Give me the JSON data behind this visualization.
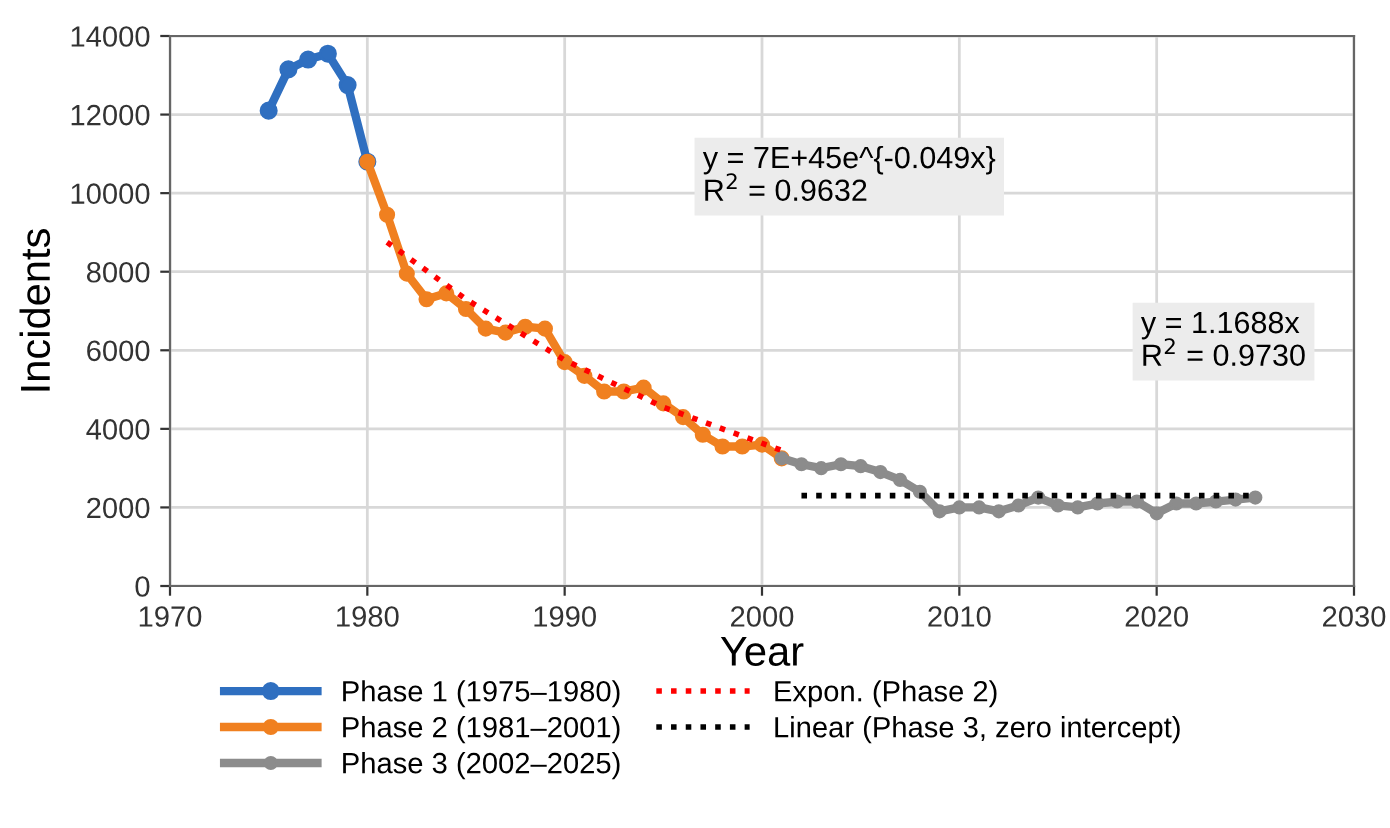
{
  "chart_data": {
    "type": "line",
    "xlabel": "Year",
    "ylabel": "Incidents",
    "xlim": [
      1970,
      2030
    ],
    "ylim": [
      0,
      14000
    ],
    "xticks": [
      1970,
      1980,
      1990,
      2000,
      2010,
      2020,
      2030
    ],
    "yticks": [
      0,
      2000,
      4000,
      6000,
      8000,
      10000,
      12000,
      14000
    ],
    "grid": true,
    "legend": "bottom",
    "marker": "circle",
    "line_style": "solid",
    "series": [
      {
        "name": "Phase 1 (1975–1980)",
        "color": "#2f6fc0",
        "x": [
          1975,
          1976,
          1977,
          1978,
          1979,
          1980
        ],
        "values": [
          12100,
          13150,
          13400,
          13550,
          12750,
          10800
        ]
      },
      {
        "name": "Phase 2 (1981–2001)",
        "color": "#f08020",
        "x": [
          1980,
          1981,
          1982,
          1983,
          1984,
          1985,
          1986,
          1987,
          1988,
          1989,
          1990,
          1991,
          1992,
          1993,
          1994,
          1995,
          1996,
          1997,
          1998,
          1999,
          2000,
          2001
        ],
        "values": [
          10800,
          9450,
          7950,
          7300,
          7450,
          7050,
          6550,
          6450,
          6600,
          6550,
          5700,
          5350,
          4950,
          4950,
          5050,
          4650,
          4300,
          3850,
          3550,
          3550,
          3600,
          3250
        ]
      },
      {
        "name": "Phase 3 (2002–2025)",
        "color": "#8c8c8c",
        "x": [
          2001,
          2002,
          2003,
          2004,
          2005,
          2006,
          2007,
          2008,
          2009,
          2010,
          2011,
          2012,
          2013,
          2014,
          2015,
          2016,
          2017,
          2018,
          2019,
          2020,
          2021,
          2022,
          2023,
          2024,
          2025
        ],
        "values": [
          3250,
          3100,
          3000,
          3100,
          3050,
          2900,
          2700,
          2400,
          1900,
          2000,
          2000,
          1900,
          2050,
          2250,
          2050,
          2000,
          2100,
          2150,
          2150,
          1850,
          2100,
          2100,
          2150,
          2200,
          2250
        ]
      },
      {
        "name": "Expon. (Phase 2)",
        "color": "#ff0000",
        "type": "line",
        "marker": "none",
        "line_style": "dotted",
        "x": [
          1981,
          1985,
          1990,
          1995,
          2001
        ],
        "values": [
          8750,
          7300,
          5750,
          4550,
          3450
        ]
      },
      {
        "name": "Linear (Phase 3, zero intercept)",
        "color": "#000000",
        "type": "line",
        "marker": "none",
        "line_style": "dotted",
        "x": [
          2002,
          2025
        ],
        "values": [
          2300,
          2300
        ]
      }
    ],
    "annotations": [
      "y = 7E+45e^{-0.049x}\nR$^{2}$ = 0.9632",
      "y = 1.1688x\nR$^{2}$ = 0.9730"
    ]
  }
}
